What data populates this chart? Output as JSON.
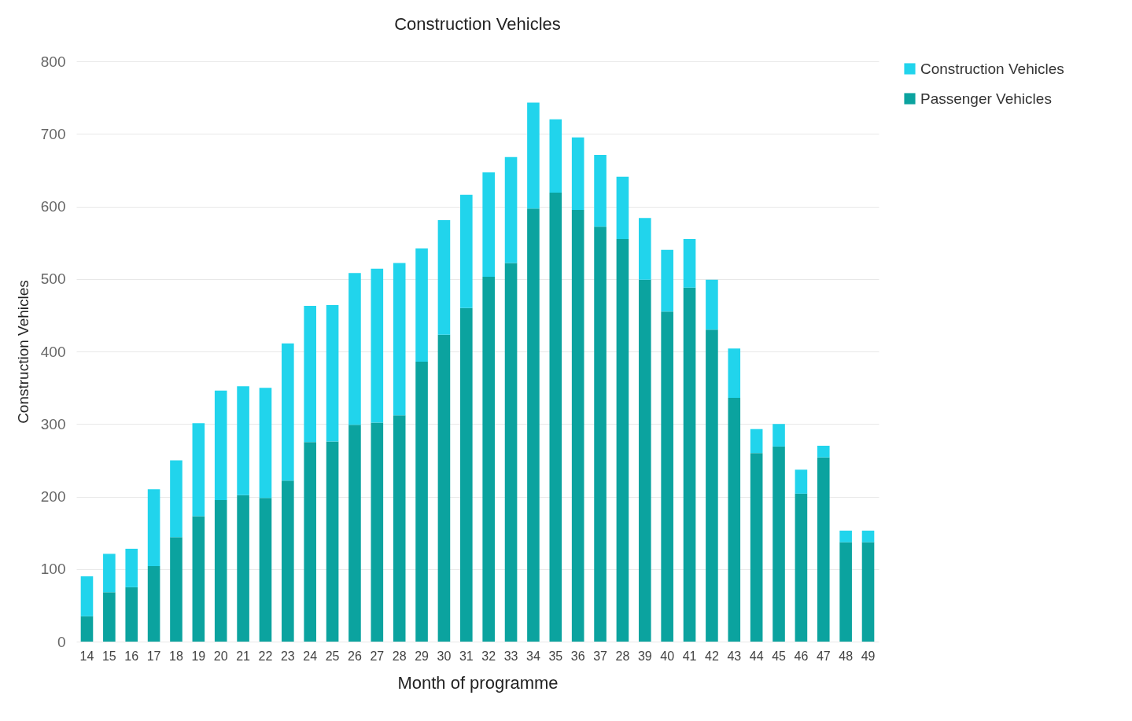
{
  "chart_data": {
    "type": "bar",
    "title": "Construction Vehicles",
    "xlabel": "Month of programme",
    "ylabel": "Construction Vehicles",
    "categories": [
      "14",
      "15",
      "16",
      "17",
      "18",
      "19",
      "20",
      "21",
      "22",
      "23",
      "24",
      "25",
      "26",
      "27",
      "28",
      "29",
      "30",
      "31",
      "32",
      "33",
      "34",
      "35",
      "36",
      "37",
      "28",
      "39",
      "40",
      "41",
      "42",
      "43",
      "44",
      "45",
      "46",
      "47",
      "48",
      "49"
    ],
    "stacked": true,
    "series": [
      {
        "name": "Passenger Vehicles",
        "color": "#0ba39f",
        "values": [
          35,
          68,
          75,
          104,
          144,
          173,
          195,
          202,
          198,
          222,
          275,
          276,
          299,
          302,
          312,
          386,
          423,
          460,
          503,
          522,
          597,
          619,
          595,
          572,
          555,
          499,
          455,
          488,
          430,
          336,
          260,
          269,
          204,
          254,
          137,
          137
        ]
      },
      {
        "name": "Construction Vehicles",
        "color": "#21d4ec",
        "values": [
          55,
          53,
          53,
          106,
          106,
          128,
          151,
          150,
          152,
          189,
          188,
          188,
          209,
          212,
          210,
          156,
          158,
          156,
          144,
          146,
          146,
          101,
          100,
          99,
          86,
          85,
          85,
          67,
          69,
          68,
          33,
          31,
          33,
          16,
          16,
          16
        ]
      }
    ],
    "ylim": [
      0,
      800
    ],
    "yticks": [
      0,
      100,
      200,
      300,
      400,
      500,
      600,
      700,
      800
    ],
    "grid": "y",
    "legend": "right"
  }
}
